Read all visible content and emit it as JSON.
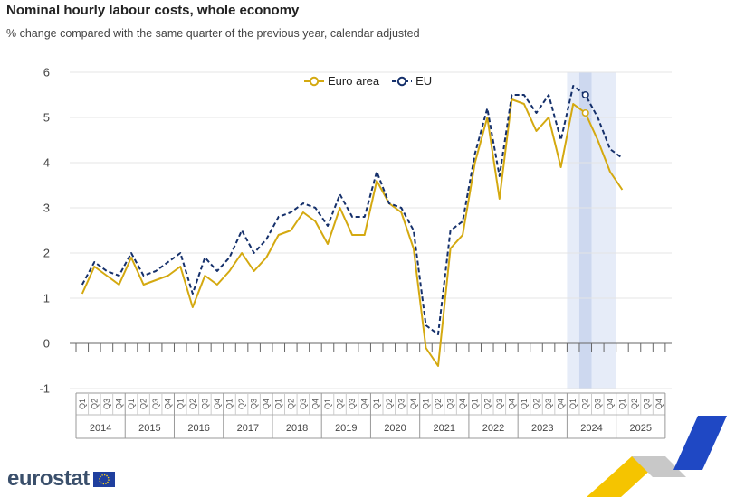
{
  "title": "Nominal hourly labour costs, whole economy",
  "subtitle": "% change compared with the same quarter of the previous year, calendar adjusted",
  "logo": {
    "text": "eurostat",
    "flag_icon": "eu-flag-icon"
  },
  "colors": {
    "euro_area": "#d4a910",
    "eu": "#15306b",
    "highlight": "#e6ecf8",
    "highlight_dark": "#cdd8ef",
    "grid": "#e4e4e4"
  },
  "chart_data": {
    "type": "line",
    "title": "Nominal hourly labour costs, whole economy",
    "subtitle": "% change compared with the same quarter of the previous year, calendar adjusted",
    "ylim": [
      -1,
      6
    ],
    "yticks": [
      -1,
      0,
      1,
      2,
      3,
      4,
      5,
      6
    ],
    "grid": true,
    "legend_position": "top",
    "quarter_labels": [
      "Q1",
      "Q2",
      "Q3",
      "Q4"
    ],
    "years": [
      "2014",
      "2015",
      "2016",
      "2017",
      "2018",
      "2019",
      "2020",
      "2021",
      "2022",
      "2023",
      "2024",
      "2025"
    ],
    "highlight": {
      "year": "2024",
      "quarter": "Q2"
    },
    "series": [
      {
        "name": "Euro area",
        "color": "#d4a910",
        "dash": false,
        "values": [
          1.1,
          1.7,
          1.5,
          1.3,
          1.9,
          1.3,
          1.4,
          1.5,
          1.7,
          0.8,
          1.5,
          1.3,
          1.6,
          2.0,
          1.6,
          1.9,
          2.4,
          2.5,
          2.9,
          2.7,
          2.2,
          3.0,
          2.4,
          2.4,
          3.6,
          3.1,
          2.9,
          2.1,
          -0.1,
          -0.5,
          2.1,
          2.4,
          4.0,
          5.0,
          3.2,
          5.4,
          5.3,
          4.7,
          5.0,
          3.9,
          5.3,
          5.1,
          4.5,
          3.8,
          3.4
        ]
      },
      {
        "name": "EU",
        "color": "#15306b",
        "dash": true,
        "values": [
          1.3,
          1.8,
          1.6,
          1.5,
          2.0,
          1.5,
          1.6,
          1.8,
          2.0,
          1.1,
          1.9,
          1.6,
          1.9,
          2.5,
          2.0,
          2.3,
          2.8,
          2.9,
          3.1,
          3.0,
          2.6,
          3.3,
          2.8,
          2.8,
          3.8,
          3.1,
          3.0,
          2.5,
          0.4,
          0.2,
          2.5,
          2.7,
          4.2,
          5.2,
          3.7,
          5.5,
          5.5,
          5.1,
          5.5,
          4.5,
          5.7,
          5.5,
          5.0,
          4.3,
          4.1
        ]
      }
    ]
  }
}
